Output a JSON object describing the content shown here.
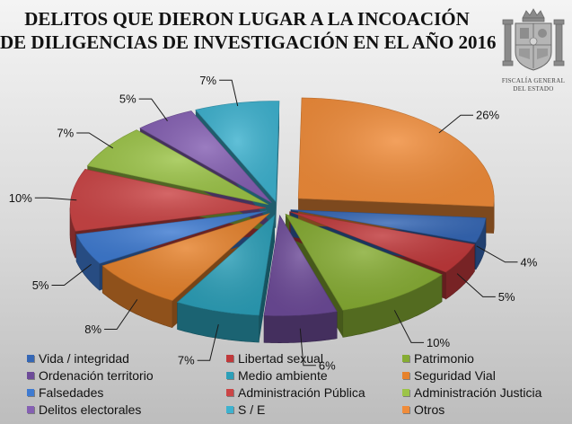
{
  "title": {
    "line1": "DELITOS QUE DIERON LUGAR A LA INCOACIÓN",
    "line2": "DE DILIGENCIAS DE INVESTIGACIÓN EN EL AÑO 2016"
  },
  "emblem": {
    "caption_line1": "FISCALÍA GENERAL",
    "caption_line2": "DEL ESTADO"
  },
  "chart_data": {
    "type": "pie",
    "style": "3d-exploded",
    "legend_position": "bottom",
    "unit": "%",
    "slices": [
      {
        "name": "Otros",
        "value": 26,
        "label": "26%",
        "color": "#f08c3a"
      },
      {
        "name": "Vida / integridad",
        "value": 4,
        "label": "4%",
        "color": "#3567b5"
      },
      {
        "name": "Libertad sexual",
        "value": 5,
        "label": "5%",
        "color": "#c0393b"
      },
      {
        "name": "Patrimonio",
        "value": 10,
        "label": "10%",
        "color": "#86ac33"
      },
      {
        "name": "Ordenación territorio",
        "value": 6,
        "label": "6%",
        "color": "#6d4b98"
      },
      {
        "name": "Medio ambiente",
        "value": 7,
        "label": "7%",
        "color": "#2c9fb8"
      },
      {
        "name": "Seguridad Vial",
        "value": 8,
        "label": "8%",
        "color": "#e6822c"
      },
      {
        "name": "Falsedades",
        "value": 5,
        "label": "5%",
        "color": "#3f7bd1"
      },
      {
        "name": "Administración Pública",
        "value": 10,
        "label": "10%",
        "color": "#cb4546"
      },
      {
        "name": "Administración Justicia",
        "value": 7,
        "label": "7%",
        "color": "#9cc448"
      },
      {
        "name": "Delitos electorales",
        "value": 5,
        "label": "5%",
        "color": "#8560b3"
      },
      {
        "name": "S / E",
        "value": 7,
        "label": "7%",
        "color": "#3eb2cf"
      }
    ]
  },
  "legend": {
    "items": [
      {
        "label": "Vida / integridad",
        "color": "#3567b5"
      },
      {
        "label": "Libertad sexual",
        "color": "#c0393b"
      },
      {
        "label": "Patrimonio",
        "color": "#86ac33"
      },
      {
        "label": "Ordenación territorio",
        "color": "#6d4b98"
      },
      {
        "label": "Medio ambiente",
        "color": "#2c9fb8"
      },
      {
        "label": "Seguridad Vial",
        "color": "#e6822c"
      },
      {
        "label": "Falsedades",
        "color": "#3f7bd1"
      },
      {
        "label": "Administración Pública",
        "color": "#cb4546"
      },
      {
        "label": "Administración Justicia",
        "color": "#9cc448"
      },
      {
        "label": "Delitos electorales",
        "color": "#8560b3"
      },
      {
        "label": "S / E",
        "color": "#3eb2cf"
      },
      {
        "label": "Otros",
        "color": "#f08c3a"
      }
    ]
  }
}
